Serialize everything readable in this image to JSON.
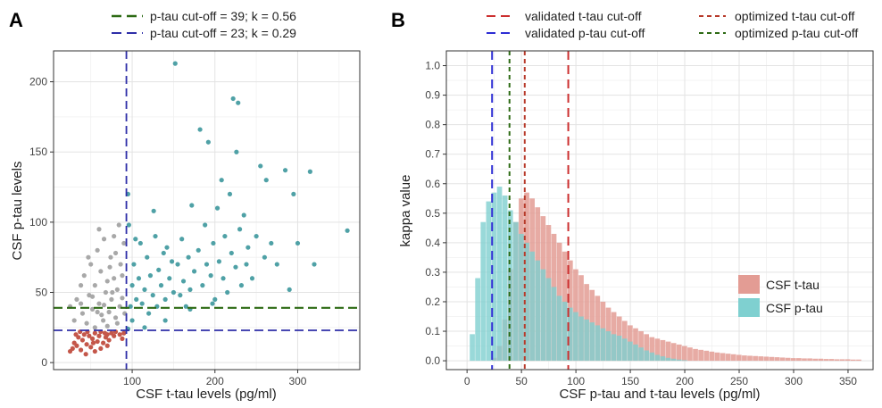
{
  "chart_data": [
    {
      "panel_label": "A",
      "type": "scatter",
      "xlabel": "CSF t-tau levels  (pg/ml)",
      "ylabel": "CSF p-tau levels",
      "xlim": [
        5,
        375
      ],
      "ylim": [
        -5,
        222
      ],
      "xticks": [
        100,
        200,
        300
      ],
      "yticks": [
        0,
        50,
        100,
        150,
        200
      ],
      "grid": true,
      "legend_position": "top",
      "legend": [
        {
          "label": "p-tau cut-off = 39; k = 0.56",
          "color": "#2d6a14",
          "dash": "long"
        },
        {
          "label": "p-tau cut-off = 23; k = 0.29",
          "color": "#2e2ea8",
          "dash": "long"
        }
      ],
      "cutoffs": {
        "ttau_x": 93,
        "ptau_y1": 39,
        "ptau_y2": 23
      },
      "point_colors": {
        "low": "#c4574a",
        "mid": "#a8a8a8",
        "high": "#4fa1a6"
      },
      "series": [
        {
          "name": "",
          "color": "#c4574a",
          "points": [
            [
              25,
              8
            ],
            [
              28,
              10
            ],
            [
              30,
              14
            ],
            [
              33,
              12
            ],
            [
              35,
              18
            ],
            [
              38,
              9
            ],
            [
              40,
              16
            ],
            [
              42,
              20
            ],
            [
              45,
              13
            ],
            [
              48,
              19
            ],
            [
              50,
              11
            ],
            [
              52,
              17
            ],
            [
              55,
              21
            ],
            [
              58,
              15
            ],
            [
              60,
              19
            ],
            [
              62,
              22
            ],
            [
              65,
              14
            ],
            [
              68,
              18
            ],
            [
              70,
              20
            ],
            [
              72,
              16
            ],
            [
              75,
              21
            ],
            [
              78,
              19
            ],
            [
              80,
              22
            ],
            [
              85,
              20
            ],
            [
              88,
              17
            ],
            [
              90,
              21
            ],
            [
              32,
              20
            ],
            [
              37,
              22
            ],
            [
              44,
              6
            ],
            [
              55,
              8
            ],
            [
              62,
              10
            ],
            [
              70,
              12
            ],
            [
              46,
              22
            ],
            [
              53,
              14
            ],
            [
              67,
              21
            ]
          ]
        },
        {
          "name": "",
          "color": "#a8a8a8",
          "points": [
            [
              25,
              40
            ],
            [
              30,
              30
            ],
            [
              33,
              45
            ],
            [
              38,
              55
            ],
            [
              40,
              35
            ],
            [
              42,
              62
            ],
            [
              45,
              28
            ],
            [
              48,
              48
            ],
            [
              50,
              70
            ],
            [
              52,
              38
            ],
            [
              55,
              55
            ],
            [
              58,
              80
            ],
            [
              60,
              42
            ],
            [
              62,
              65
            ],
            [
              65,
              30
            ],
            [
              66,
              88
            ],
            [
              68,
              50
            ],
            [
              70,
              58
            ],
            [
              72,
              36
            ],
            [
              74,
              75
            ],
            [
              75,
              45
            ],
            [
              78,
              90
            ],
            [
              78,
              60
            ],
            [
              80,
              32
            ],
            [
              82,
              52
            ],
            [
              84,
              98
            ],
            [
              85,
              40
            ],
            [
              86,
              70
            ],
            [
              88,
              46
            ],
            [
              90,
              85
            ],
            [
              91,
              35
            ],
            [
              60,
              95
            ],
            [
              55,
              25
            ],
            [
              70,
              26
            ],
            [
              82,
              28
            ],
            [
              47,
              75
            ],
            [
              38,
              42
            ],
            [
              66,
              41
            ],
            [
              76,
              50
            ],
            [
              88,
              62
            ],
            [
              52,
              47
            ],
            [
              63,
              34
            ],
            [
              73,
              68
            ],
            [
              80,
              78
            ],
            [
              58,
              36
            ]
          ]
        },
        {
          "name": "",
          "color": "#4fa1a6",
          "points": [
            [
              95,
              120
            ],
            [
              96,
              98
            ],
            [
              98,
              40
            ],
            [
              100,
              55
            ],
            [
              102,
              70
            ],
            [
              105,
              45
            ],
            [
              108,
              60
            ],
            [
              110,
              85
            ],
            [
              112,
              42
            ],
            [
              115,
              52
            ],
            [
              118,
              75
            ],
            [
              120,
              35
            ],
            [
              122,
              62
            ],
            [
              125,
              48
            ],
            [
              128,
              90
            ],
            [
              130,
              40
            ],
            [
              132,
              66
            ],
            [
              135,
              55
            ],
            [
              138,
              78
            ],
            [
              140,
              45
            ],
            [
              142,
              82
            ],
            [
              145,
              60
            ],
            [
              150,
              50
            ],
            [
              152,
              213
            ],
            [
              155,
              70
            ],
            [
              158,
              48
            ],
            [
              160,
              88
            ],
            [
              162,
              58
            ],
            [
              165,
              40
            ],
            [
              168,
              75
            ],
            [
              170,
              52
            ],
            [
              172,
              112
            ],
            [
              175,
              65
            ],
            [
              180,
              80
            ],
            [
              182,
              166
            ],
            [
              185,
              55
            ],
            [
              188,
              98
            ],
            [
              190,
              70
            ],
            [
              192,
              157
            ],
            [
              195,
              62
            ],
            [
              198,
              85
            ],
            [
              200,
              45
            ],
            [
              203,
              110
            ],
            [
              205,
              72
            ],
            [
              208,
              130
            ],
            [
              210,
              60
            ],
            [
              212,
              90
            ],
            [
              215,
              50
            ],
            [
              218,
              120
            ],
            [
              220,
              78
            ],
            [
              222,
              188
            ],
            [
              225,
              68
            ],
            [
              226,
              150
            ],
            [
              228,
              185
            ],
            [
              230,
              95
            ],
            [
              232,
              55
            ],
            [
              235,
              105
            ],
            [
              238,
              70
            ],
            [
              240,
              82
            ],
            [
              245,
              60
            ],
            [
              250,
              90
            ],
            [
              255,
              140
            ],
            [
              260,
              75
            ],
            [
              262,
              130
            ],
            [
              268,
              85
            ],
            [
              275,
              70
            ],
            [
              285,
              137
            ],
            [
              290,
              52
            ],
            [
              295,
              120
            ],
            [
              300,
              85
            ],
            [
              315,
              136
            ],
            [
              320,
              70
            ],
            [
              360,
              94
            ],
            [
              100,
              30
            ],
            [
              115,
              25
            ],
            [
              140,
              30
            ],
            [
              170,
              38
            ],
            [
              95,
              24
            ],
            [
              104,
              88
            ],
            [
              126,
              108
            ],
            [
              148,
              72
            ],
            [
              197,
              42
            ]
          ]
        }
      ]
    },
    {
      "panel_label": "B",
      "type": "bar",
      "xlabel": "CSF p-tau and t-tau levels (pg/ml)",
      "ylabel": "kappa value",
      "xlim": [
        -19,
        373
      ],
      "ylim": [
        -0.03,
        1.05
      ],
      "xticks": [
        0,
        50,
        100,
        150,
        200,
        250,
        300,
        350
      ],
      "yticks": [
        0.0,
        0.1,
        0.2,
        0.3,
        0.4,
        0.5,
        0.6,
        0.7,
        0.8,
        0.9,
        1.0
      ],
      "grid": true,
      "legend_position": "right",
      "bin_width": 5,
      "top_legend": [
        {
          "label": "validated t-tau cut-off",
          "color": "#cc2f2f",
          "dash": "long"
        },
        {
          "label": "optimized t-tau cut-off",
          "color": "#b73a2a",
          "dash": "short"
        },
        {
          "label": "validated p-tau cut-off",
          "color": "#2d2dd4",
          "dash": "long"
        },
        {
          "label": "optimized p-tau cut-off",
          "color": "#2d6a14",
          "dash": "short"
        }
      ],
      "vlines": [
        {
          "x": 23,
          "color": "#2d2dd4",
          "dash": "long"
        },
        {
          "x": 39,
          "color": "#2d6a14",
          "dash": "short"
        },
        {
          "x": 53,
          "color": "#b73a2a",
          "dash": "short"
        },
        {
          "x": 93,
          "color": "#cc2f2f",
          "dash": "long"
        }
      ],
      "series": [
        {
          "name": "CSF t-tau",
          "color": "#e39c94",
          "x": [
            25,
            30,
            35,
            40,
            45,
            50,
            55,
            60,
            65,
            70,
            75,
            80,
            85,
            90,
            95,
            100,
            105,
            110,
            115,
            120,
            125,
            130,
            135,
            140,
            145,
            150,
            155,
            160,
            165,
            170,
            175,
            180,
            185,
            190,
            195,
            200,
            205,
            210,
            215,
            220,
            225,
            230,
            235,
            240,
            245,
            250,
            255,
            260,
            265,
            270,
            275,
            280,
            285,
            290,
            295,
            300,
            305,
            310,
            315,
            320,
            325,
            330,
            335,
            340,
            345,
            350,
            355,
            360
          ],
          "values": [
            0.01,
            0.05,
            0.14,
            0.31,
            0.47,
            0.55,
            0.57,
            0.55,
            0.52,
            0.49,
            0.46,
            0.43,
            0.4,
            0.37,
            0.34,
            0.31,
            0.29,
            0.26,
            0.24,
            0.22,
            0.2,
            0.18,
            0.165,
            0.15,
            0.135,
            0.12,
            0.11,
            0.1,
            0.09,
            0.08,
            0.075,
            0.07,
            0.065,
            0.06,
            0.055,
            0.05,
            0.045,
            0.04,
            0.037,
            0.034,
            0.031,
            0.028,
            0.026,
            0.024,
            0.022,
            0.02,
            0.018,
            0.017,
            0.016,
            0.015,
            0.014,
            0.013,
            0.012,
            0.011,
            0.01,
            0.009,
            0.009,
            0.008,
            0.008,
            0.007,
            0.007,
            0.006,
            0.006,
            0.005,
            0.005,
            0.005,
            0.004,
            0.004
          ]
        },
        {
          "name": "CSF p-tau",
          "color": "#7fd0d0",
          "x": [
            5,
            10,
            15,
            20,
            25,
            30,
            35,
            40,
            45,
            50,
            55,
            60,
            65,
            70,
            75,
            80,
            85,
            90,
            95,
            100,
            105,
            110,
            115,
            120,
            125,
            130,
            135,
            140,
            145,
            150,
            155,
            160,
            165,
            170,
            175,
            180,
            185,
            190,
            195,
            200
          ],
          "values": [
            0.09,
            0.28,
            0.47,
            0.54,
            0.57,
            0.59,
            0.56,
            0.51,
            0.47,
            0.43,
            0.4,
            0.37,
            0.34,
            0.31,
            0.28,
            0.25,
            0.22,
            0.2,
            0.18,
            0.165,
            0.15,
            0.14,
            0.13,
            0.12,
            0.11,
            0.1,
            0.09,
            0.085,
            0.075,
            0.065,
            0.055,
            0.045,
            0.035,
            0.028,
            0.02,
            0.015,
            0.01,
            0.007,
            0.004,
            0.002
          ]
        }
      ]
    }
  ]
}
